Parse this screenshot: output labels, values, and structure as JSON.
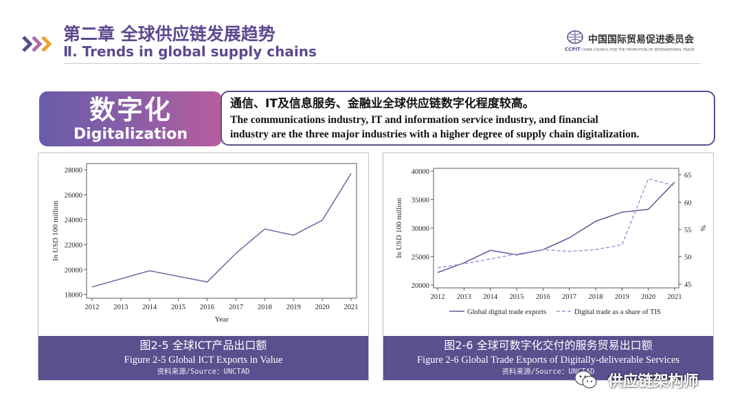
{
  "header": {
    "chapter_cn": "第二章 全球供应链发展趋势",
    "chapter_en": "Ⅱ. Trends in global supply chains",
    "logo_org_cn": "中国国际贸易促进委员会",
    "logo_abbr": "CCPIT",
    "logo_org_en": "CHINA COUNCIL FOR THE PROMOTION OF INTERNATIONAL TRADE"
  },
  "badge": {
    "cn": "数字化",
    "en": "Digitalization"
  },
  "description": {
    "cn": "通信、IT及信息服务、金融业全球供应链数字化程度较高。",
    "en_line1": "The communications industry, IT and information service industry, and financial",
    "en_line2": "industry are the three major industries with a higher degree of supply chain digitalization."
  },
  "chart_data": [
    {
      "type": "line",
      "x": [
        2012,
        2013,
        2014,
        2015,
        2016,
        2017,
        2018,
        2019,
        2020,
        2021
      ],
      "series": [
        {
          "name": "Global ICT Exports",
          "values": [
            18600,
            19250,
            19900,
            19450,
            19000,
            21300,
            23250,
            22750,
            23950,
            27700
          ]
        }
      ],
      "xlabel": "Year",
      "ylabel": "In USD 100 million",
      "ylim": [
        17700,
        28500
      ],
      "yticks": [
        18000,
        20000,
        22000,
        24000,
        26000,
        28000
      ],
      "caption_cn": "图2-5 全球ICT产品出口额",
      "caption_en": "Figure 2-5 Global ICT Exports in Value",
      "source": "资料来源/Source：UNCTAD",
      "colors": {
        "line": "#7b5fa0"
      }
    },
    {
      "type": "line",
      "x": [
        2012,
        2013,
        2014,
        2015,
        2016,
        2017,
        2018,
        2019,
        2020,
        2021
      ],
      "series": [
        {
          "name": "Global digital trade exports",
          "axis": "left",
          "values": [
            22200,
            23900,
            26100,
            25300,
            26200,
            28300,
            31200,
            32800,
            33300,
            38100
          ]
        },
        {
          "name": "Digital trade as a share of TIS",
          "axis": "right",
          "values": [
            48.0,
            48.7,
            49.6,
            50.5,
            51.3,
            51.0,
            51.3,
            52.2,
            64.3,
            63.0
          ]
        }
      ],
      "xlabel": "",
      "ylabel": "In USD 100 million",
      "y2label": "%",
      "ylim": [
        19500,
        40500
      ],
      "yticks": [
        20000,
        25000,
        30000,
        35000,
        40000
      ],
      "y2lim": [
        44.3,
        66.2
      ],
      "y2ticks": [
        45,
        50,
        55,
        60,
        65
      ],
      "caption_cn": "图2-6 全球可数字化交付的服务贸易出口额",
      "caption_en": "Figure 2-6 Global Trade Exports of Digitally-deliverable Services",
      "source": "资料来源/Source：UNCTAD",
      "colors": {
        "line1": "#6a5096",
        "line2": "#9b98d8"
      }
    }
  ],
  "watermark": {
    "text": "供应链架构师",
    "icon": "wechat-icon"
  },
  "colors": {
    "brand": "#5b4a8e",
    "caption_bg": "#5b4f8e",
    "badge_from": "#6a5ba8",
    "badge_to": "#b85d9e"
  }
}
